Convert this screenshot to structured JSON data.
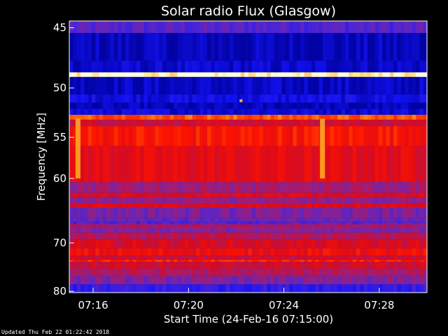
{
  "chart_data": {
    "type": "heatmap",
    "title": "Solar radio Flux (Glasgow)",
    "xlabel": "Start Time (24-Feb-16 07:15:00)",
    "ylabel": "Frequency [MHz]",
    "x_ticks": [
      "07:16",
      "07:20",
      "07:24",
      "07:28"
    ],
    "x_tick_minutes": [
      1,
      5,
      9,
      13
    ],
    "x_range_minutes": [
      0,
      15
    ],
    "y_ticks": [
      45,
      50,
      55,
      60,
      70,
      80
    ],
    "y_range": [
      44.5,
      80.3
    ],
    "y_scale": "reciprocal",
    "grid": false,
    "colormap": "blue-purple-red-yellow",
    "bands": [
      {
        "f0": 44.5,
        "f1": 45.4,
        "level": 0.3
      },
      {
        "f0": 45.4,
        "f1": 47.6,
        "level": 0.05
      },
      {
        "f0": 47.6,
        "f1": 48.6,
        "level": 0.08
      },
      {
        "f0": 48.6,
        "f1": 49.0,
        "level": 1.0
      },
      {
        "f0": 49.0,
        "f1": 50.6,
        "level": 0.06
      },
      {
        "f0": 50.6,
        "f1": 51.4,
        "level": 0.12
      },
      {
        "f0": 51.4,
        "f1": 52.0,
        "level": 0.04
      },
      {
        "f0": 52.0,
        "f1": 52.6,
        "level": 0.1
      },
      {
        "f0": 52.6,
        "f1": 53.1,
        "level": 0.8
      },
      {
        "f0": 53.1,
        "f1": 53.8,
        "level": 0.55
      },
      {
        "f0": 53.8,
        "f1": 56.0,
        "level": 0.7
      },
      {
        "f0": 56.0,
        "f1": 60.5,
        "level": 0.62
      },
      {
        "f0": 60.5,
        "f1": 62.0,
        "level": 0.45
      },
      {
        "f0": 62.0,
        "f1": 62.6,
        "level": 0.6
      },
      {
        "f0": 62.6,
        "f1": 63.6,
        "level": 0.42
      },
      {
        "f0": 63.6,
        "f1": 64.2,
        "level": 0.6
      },
      {
        "f0": 64.2,
        "f1": 65.8,
        "level": 0.38
      },
      {
        "f0": 65.8,
        "f1": 66.3,
        "level": 0.35
      },
      {
        "f0": 66.3,
        "f1": 66.8,
        "level": 0.3
      },
      {
        "f0": 66.8,
        "f1": 67.2,
        "level": 0.5
      },
      {
        "f0": 67.2,
        "f1": 68.2,
        "level": 0.4
      },
      {
        "f0": 68.2,
        "f1": 69.4,
        "level": 0.5
      },
      {
        "f0": 69.4,
        "f1": 71.0,
        "level": 0.58
      },
      {
        "f0": 71.0,
        "f1": 72.4,
        "level": 0.65
      },
      {
        "f0": 72.4,
        "f1": 73.2,
        "level": 0.55
      },
      {
        "f0": 73.2,
        "f1": 73.6,
        "level": 0.72
      },
      {
        "f0": 73.6,
        "f1": 75.0,
        "level": 0.55
      },
      {
        "f0": 75.0,
        "f1": 76.6,
        "level": 0.48
      },
      {
        "f0": 76.6,
        "f1": 78.4,
        "level": 0.38
      },
      {
        "f0": 78.4,
        "f1": 80.3,
        "level": 0.22
      }
    ],
    "bursts": [
      {
        "t": 0.35,
        "f0": 53.0,
        "f1": 60.0,
        "level": 0.9
      },
      {
        "t": 10.6,
        "f0": 53.0,
        "f1": 60.0,
        "level": 0.9
      }
    ],
    "blips": [
      {
        "t": 7.2,
        "f": 51.2,
        "level": 0.9
      }
    ]
  },
  "footer": {
    "updated": "Updated Thu Feb 22 01:22:42 2018"
  }
}
